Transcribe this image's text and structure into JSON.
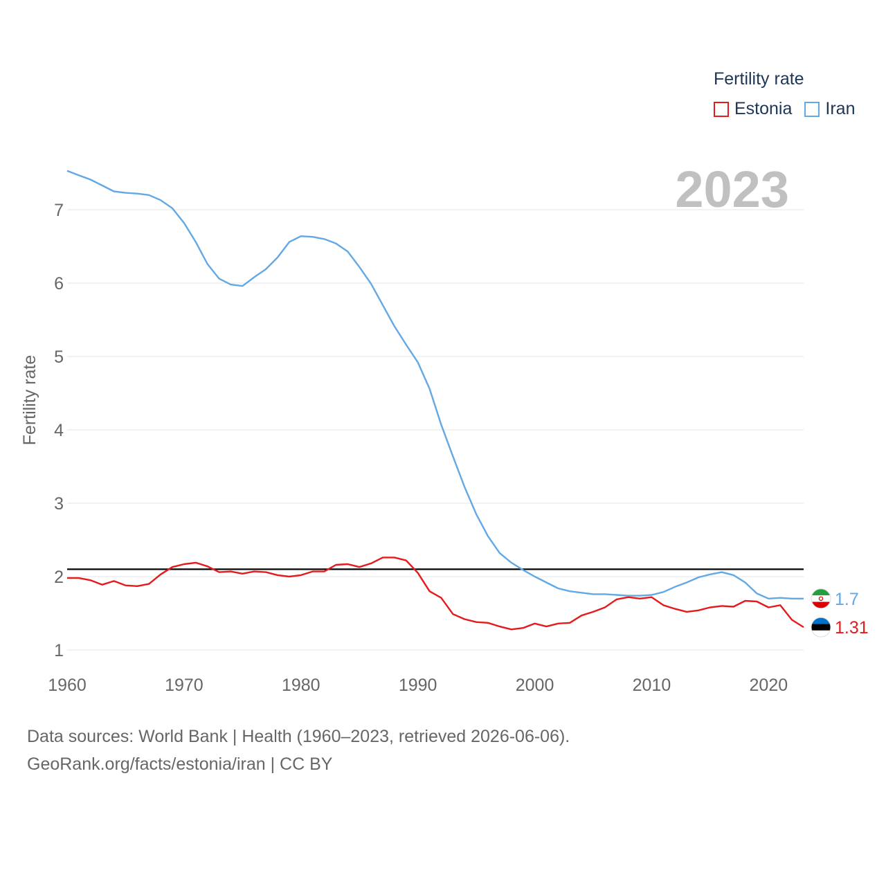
{
  "chart_data": {
    "type": "line",
    "title": "Fertility rate",
    "year_label": "2023",
    "ylabel": "Fertility rate",
    "xlabel": "",
    "xlim": [
      1960,
      2023
    ],
    "ylim": [
      0.85,
      7.8
    ],
    "x_ticks": [
      1960,
      1970,
      1980,
      1990,
      2000,
      2010,
      2020
    ],
    "y_ticks": [
      1,
      2,
      3,
      4,
      5,
      6,
      7
    ],
    "reference_line": {
      "value": 2.1,
      "color": "#000000"
    },
    "grid": true,
    "legend_position": "top-right",
    "x": [
      1960,
      1961,
      1962,
      1963,
      1964,
      1965,
      1966,
      1967,
      1968,
      1969,
      1970,
      1971,
      1972,
      1973,
      1974,
      1975,
      1976,
      1977,
      1978,
      1979,
      1980,
      1981,
      1982,
      1983,
      1984,
      1985,
      1986,
      1987,
      1988,
      1989,
      1990,
      1991,
      1992,
      1993,
      1994,
      1995,
      1996,
      1997,
      1998,
      1999,
      2000,
      2001,
      2002,
      2003,
      2004,
      2005,
      2006,
      2007,
      2008,
      2009,
      2010,
      2011,
      2012,
      2013,
      2014,
      2015,
      2016,
      2017,
      2018,
      2019,
      2020,
      2021,
      2022,
      2023
    ],
    "series": [
      {
        "name": "Estonia",
        "color": "#e41a1c",
        "end_label": "1.31",
        "values": [
          1.98,
          1.98,
          1.95,
          1.89,
          1.94,
          1.88,
          1.87,
          1.9,
          2.03,
          2.13,
          2.17,
          2.19,
          2.14,
          2.06,
          2.07,
          2.04,
          2.07,
          2.06,
          2.02,
          2.0,
          2.02,
          2.07,
          2.07,
          2.16,
          2.17,
          2.13,
          2.18,
          2.26,
          2.26,
          2.22,
          2.05,
          1.8,
          1.71,
          1.49,
          1.42,
          1.38,
          1.37,
          1.32,
          1.28,
          1.3,
          1.36,
          1.32,
          1.36,
          1.37,
          1.47,
          1.52,
          1.58,
          1.69,
          1.72,
          1.7,
          1.72,
          1.61,
          1.56,
          1.52,
          1.54,
          1.58,
          1.6,
          1.59,
          1.67,
          1.66,
          1.58,
          1.61,
          1.41,
          1.31
        ]
      },
      {
        "name": "Iran",
        "color": "#62a8e5",
        "end_label": "1.7",
        "values": [
          7.53,
          7.47,
          7.41,
          7.33,
          7.25,
          7.23,
          7.22,
          7.2,
          7.13,
          7.02,
          6.82,
          6.56,
          6.26,
          6.06,
          5.98,
          5.96,
          6.08,
          6.19,
          6.35,
          6.56,
          6.64,
          6.63,
          6.6,
          6.54,
          6.43,
          6.22,
          5.99,
          5.7,
          5.41,
          5.16,
          4.92,
          4.56,
          4.07,
          3.64,
          3.22,
          2.85,
          2.55,
          2.32,
          2.19,
          2.09,
          2.0,
          1.92,
          1.84,
          1.8,
          1.78,
          1.76,
          1.76,
          1.75,
          1.74,
          1.74,
          1.75,
          1.79,
          1.86,
          1.92,
          1.99,
          2.03,
          2.06,
          2.02,
          1.92,
          1.77,
          1.7,
          1.71,
          1.7,
          1.7
        ]
      }
    ]
  },
  "legend": {
    "title": "Fertility rate",
    "items": [
      "Estonia",
      "Iran"
    ]
  },
  "sources": {
    "line1": "Data sources: World Bank | Health (1960–2023, retrieved 2026-06-06).",
    "line2": "GeoRank.org/facts/estonia/iran | CC BY"
  },
  "flags": {
    "iran": "iran-flag-icon",
    "estonia": "estonia-flag-icon"
  }
}
